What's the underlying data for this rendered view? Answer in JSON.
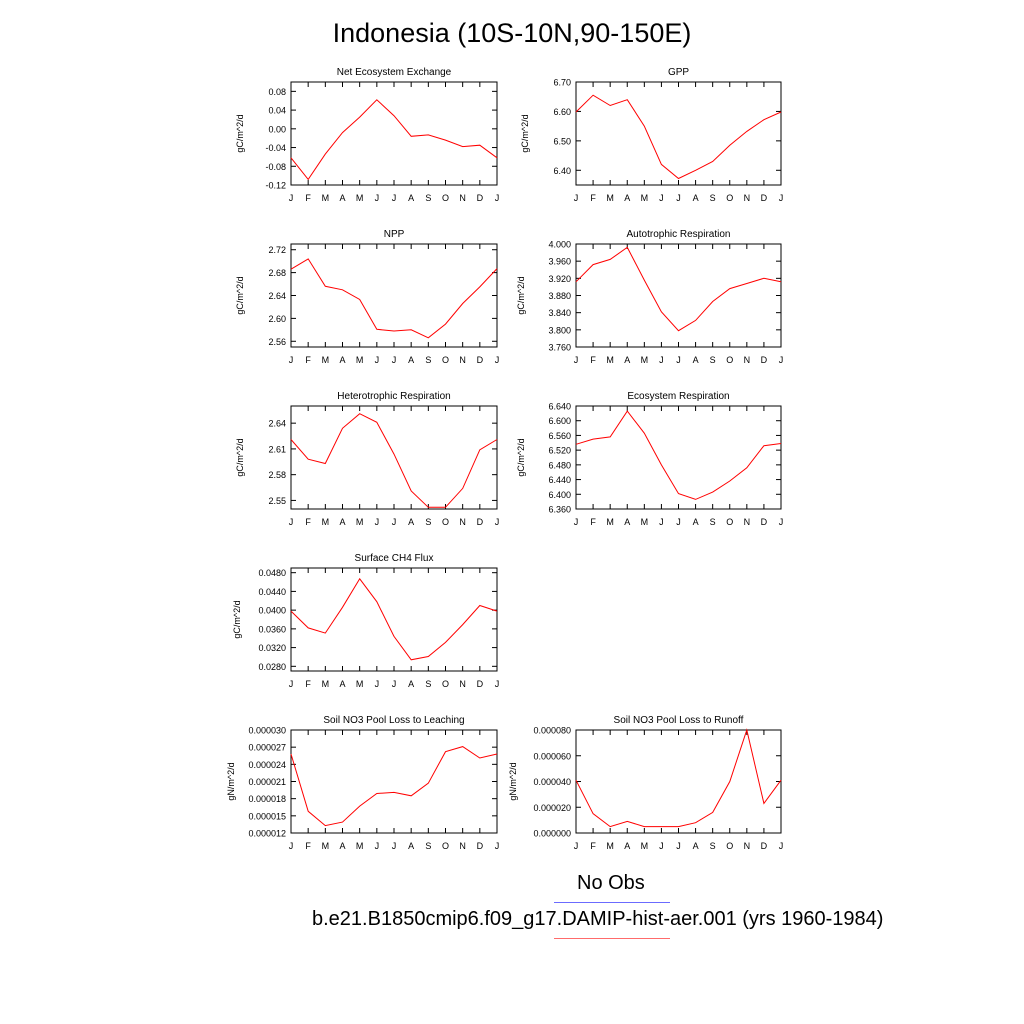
{
  "title": "Indonesia (10S-10N,90-150E)",
  "legend": {
    "obs_label": "No Obs",
    "obs_color": "#6b6bff",
    "case_label": "b.e21.B1850cmip6.f09_g17.DAMIP-hist-aer.001 (yrs 1960-1984)",
    "case_color": "#ff6b6b"
  },
  "line_color": "#ff0000",
  "chart_data": [
    {
      "type": "line",
      "title": "Net Ecosystem Exchange",
      "ylabel": "gC/m^2/d",
      "categories": [
        "J",
        "F",
        "M",
        "A",
        "M",
        "J",
        "J",
        "A",
        "S",
        "O",
        "N",
        "D",
        "J"
      ],
      "ylim": [
        -0.12,
        0.1
      ],
      "yticks": [
        -0.12,
        -0.08,
        -0.04,
        0.0,
        0.04,
        0.08
      ],
      "yticklabels": [
        "-0.12",
        "-0.08",
        "-0.04",
        "0.00",
        "0.04",
        "0.08"
      ],
      "values": [
        -0.062,
        -0.108,
        -0.054,
        -0.008,
        0.025,
        0.062,
        0.028,
        -0.016,
        -0.013,
        -0.024,
        -0.038,
        -0.035,
        -0.062
      ]
    },
    {
      "type": "line",
      "title": "GPP",
      "ylabel": "gC/m^2/d",
      "categories": [
        "J",
        "F",
        "M",
        "A",
        "M",
        "J",
        "J",
        "A",
        "S",
        "O",
        "N",
        "D",
        "J"
      ],
      "ylim": [
        6.35,
        6.7
      ],
      "yticks": [
        6.4,
        6.5,
        6.6,
        6.7
      ],
      "yticklabels": [
        "6.40",
        "6.50",
        "6.60",
        "6.70"
      ],
      "values": [
        6.598,
        6.655,
        6.62,
        6.64,
        6.55,
        6.42,
        6.372,
        6.4,
        6.43,
        6.485,
        6.532,
        6.572,
        6.598
      ]
    },
    {
      "type": "line",
      "title": "NPP",
      "ylabel": "gC/m^2/d",
      "categories": [
        "J",
        "F",
        "M",
        "A",
        "M",
        "J",
        "J",
        "A",
        "S",
        "O",
        "N",
        "D",
        "J"
      ],
      "ylim": [
        2.55,
        2.73
      ],
      "yticks": [
        2.56,
        2.6,
        2.64,
        2.68,
        2.72
      ],
      "yticklabels": [
        "2.56",
        "2.60",
        "2.64",
        "2.68",
        "2.72"
      ],
      "values": [
        2.686,
        2.704,
        2.656,
        2.65,
        2.633,
        2.581,
        2.578,
        2.58,
        2.566,
        2.59,
        2.626,
        2.655,
        2.687
      ]
    },
    {
      "type": "line",
      "title": "Autotrophic Respiration",
      "ylabel": "gC/m^2/d",
      "categories": [
        "J",
        "F",
        "M",
        "A",
        "M",
        "J",
        "J",
        "A",
        "S",
        "O",
        "N",
        "D",
        "J"
      ],
      "ylim": [
        3.76,
        4.0
      ],
      "yticks": [
        3.76,
        3.8,
        3.84,
        3.88,
        3.92,
        3.96,
        4.0
      ],
      "yticklabels": [
        "3.760",
        "3.800",
        "3.840",
        "3.880",
        "3.920",
        "3.960",
        "4.000"
      ],
      "values": [
        3.912,
        3.952,
        3.964,
        3.992,
        3.916,
        3.842,
        3.798,
        3.822,
        3.866,
        3.896,
        3.908,
        3.92,
        3.912
      ]
    },
    {
      "type": "line",
      "title": "Heterotrophic Respiration",
      "ylabel": "gC/m^2/d",
      "categories": [
        "J",
        "F",
        "M",
        "A",
        "M",
        "J",
        "J",
        "A",
        "S",
        "O",
        "N",
        "D",
        "J"
      ],
      "ylim": [
        2.54,
        2.66
      ],
      "yticks": [
        2.55,
        2.58,
        2.61,
        2.64
      ],
      "yticklabels": [
        "2.55",
        "2.58",
        "2.61",
        "2.64"
      ],
      "values": [
        2.621,
        2.598,
        2.593,
        2.634,
        2.651,
        2.641,
        2.604,
        2.561,
        2.542,
        2.542,
        2.564,
        2.609,
        2.621
      ]
    },
    {
      "type": "line",
      "title": "Ecosystem Respiration",
      "ylabel": "gC/m^2/d",
      "categories": [
        "J",
        "F",
        "M",
        "A",
        "M",
        "J",
        "J",
        "A",
        "S",
        "O",
        "N",
        "D",
        "J"
      ],
      "ylim": [
        6.36,
        6.64
      ],
      "yticks": [
        6.36,
        6.4,
        6.44,
        6.48,
        6.52,
        6.56,
        6.6,
        6.64
      ],
      "yticklabels": [
        "6.360",
        "6.400",
        "6.440",
        "6.480",
        "6.520",
        "6.560",
        "6.600",
        "6.640"
      ],
      "values": [
        6.536,
        6.55,
        6.556,
        6.626,
        6.566,
        6.48,
        6.402,
        6.386,
        6.406,
        6.436,
        6.472,
        6.532,
        6.538
      ]
    },
    {
      "type": "line",
      "title": "Surface CH4 Flux",
      "ylabel": "gC/m^2/d",
      "categories": [
        "J",
        "F",
        "M",
        "A",
        "M",
        "J",
        "J",
        "A",
        "S",
        "O",
        "N",
        "D",
        "J"
      ],
      "ylim": [
        0.027,
        0.049
      ],
      "yticks": [
        0.028,
        0.032,
        0.036,
        0.04,
        0.044,
        0.048
      ],
      "yticklabels": [
        "0.0280",
        "0.0320",
        "0.0360",
        "0.0400",
        "0.0440",
        "0.0480"
      ],
      "values": [
        0.0398,
        0.0362,
        0.0351,
        0.0406,
        0.0467,
        0.0418,
        0.0344,
        0.0294,
        0.0301,
        0.0331,
        0.0369,
        0.041,
        0.0398
      ]
    },
    {
      "type": "line",
      "title": "Soil NO3 Pool Loss to Leaching",
      "ylabel": "gN/m^2/d",
      "categories": [
        "J",
        "F",
        "M",
        "A",
        "M",
        "J",
        "J",
        "A",
        "S",
        "O",
        "N",
        "D",
        "J"
      ],
      "ylim": [
        1.2e-05,
        3e-05
      ],
      "yticks": [
        1.2e-05,
        1.5e-05,
        1.8e-05,
        2.1e-05,
        2.4e-05,
        2.7e-05,
        3e-05
      ],
      "yticklabels": [
        "0.000012",
        "0.000015",
        "0.000018",
        "0.000021",
        "0.000024",
        "0.000027",
        "0.000030"
      ],
      "values": [
        2.58e-05,
        1.58e-05,
        1.33e-05,
        1.39e-05,
        1.67e-05,
        1.89e-05,
        1.91e-05,
        1.85e-05,
        2.07e-05,
        2.62e-05,
        2.71e-05,
        2.51e-05,
        2.58e-05
      ]
    },
    {
      "type": "line",
      "title": "Soil NO3 Pool Loss to Runoff",
      "ylabel": "gN/m^2/d",
      "categories": [
        "J",
        "F",
        "M",
        "A",
        "M",
        "J",
        "J",
        "A",
        "S",
        "O",
        "N",
        "D",
        "J"
      ],
      "ylim": [
        0.0,
        8e-05
      ],
      "yticks": [
        0.0,
        2e-05,
        4e-05,
        6e-05,
        8e-05
      ],
      "yticklabels": [
        "0.000000",
        "0.000020",
        "0.000040",
        "0.000060",
        "0.000080"
      ],
      "values": [
        4.1e-05,
        1.5e-05,
        5e-06,
        9e-06,
        5e-06,
        5e-06,
        5e-06,
        8e-06,
        1.6e-05,
        4e-05,
        8e-05,
        2.3e-05,
        4.1e-05
      ]
    }
  ]
}
